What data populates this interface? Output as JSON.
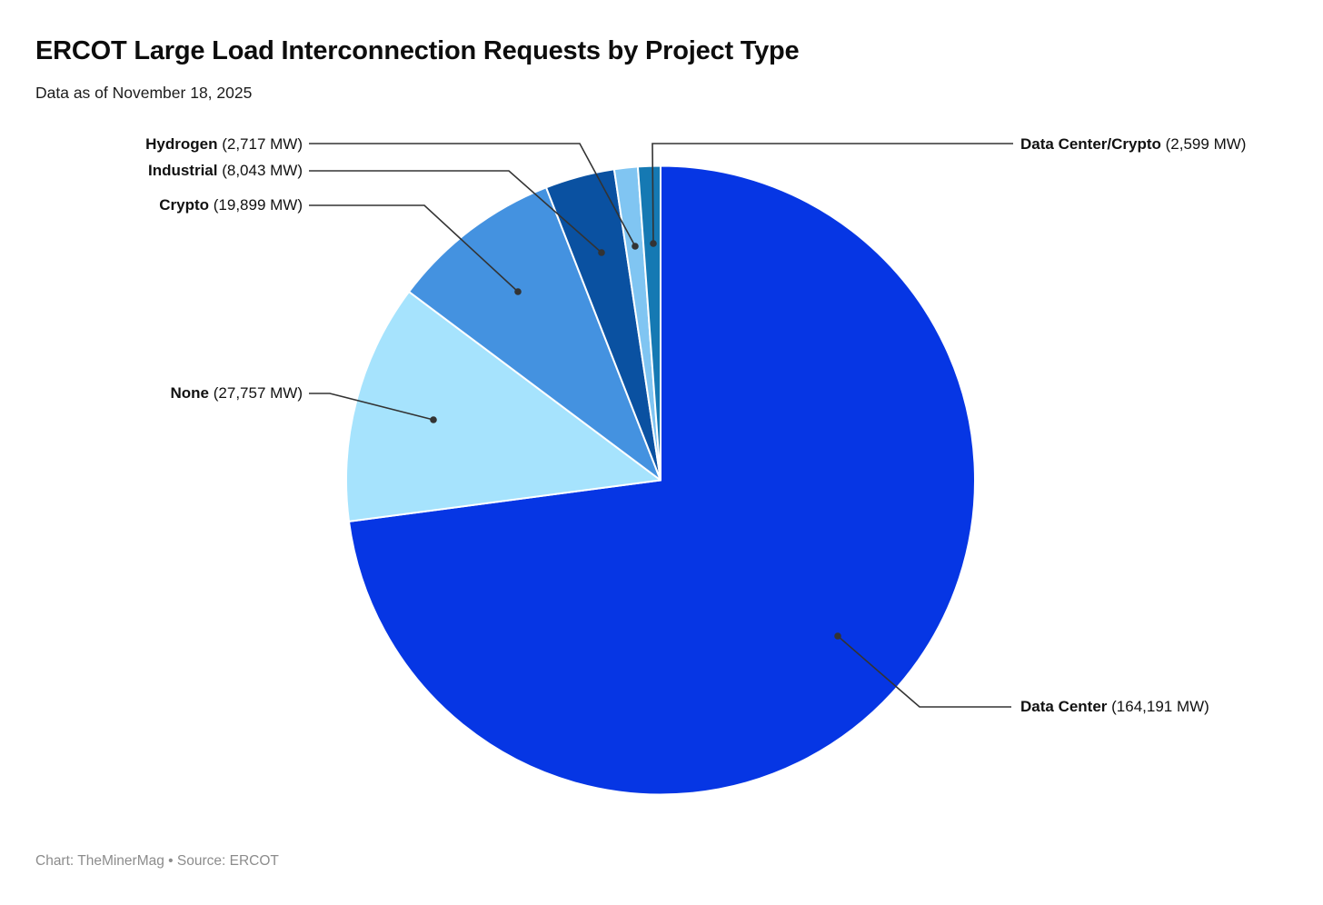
{
  "header": {
    "title": "ERCOT Large Load Interconnection Requests by Project Type",
    "subtitle": "Data as of November 18, 2025"
  },
  "footer": {
    "credit": "Chart: TheMinerMag • Source: ERCOT"
  },
  "chart_data": {
    "type": "pie",
    "title": "ERCOT Large Load Interconnection Requests by Project Type",
    "unit": "MW",
    "total_mw": 225206,
    "direction": "clockwise",
    "start_angle_deg": 0,
    "stroke_color": "#ffffff",
    "leader_line_color": "#333333",
    "slices": [
      {
        "label": "Data Center",
        "value": 164191,
        "value_label": "(164,191 MW)",
        "color": "#0636e4",
        "label_side": "right"
      },
      {
        "label": "None",
        "value": 27757,
        "value_label": "(27,757 MW)",
        "color": "#a6e3fd",
        "label_side": "left"
      },
      {
        "label": "Crypto",
        "value": 19899,
        "value_label": "(19,899 MW)",
        "color": "#4492e0",
        "label_side": "left"
      },
      {
        "label": "Industrial",
        "value": 8043,
        "value_label": "(8,043 MW)",
        "color": "#0a51a1",
        "label_side": "left"
      },
      {
        "label": "Hydrogen",
        "value": 2717,
        "value_label": "(2,717 MW)",
        "color": "#80c5f2",
        "label_side": "left"
      },
      {
        "label": "Data Center/Crypto",
        "value": 2599,
        "value_label": "(2,599 MW)",
        "color": "#1579b3",
        "label_side": "right"
      }
    ]
  }
}
